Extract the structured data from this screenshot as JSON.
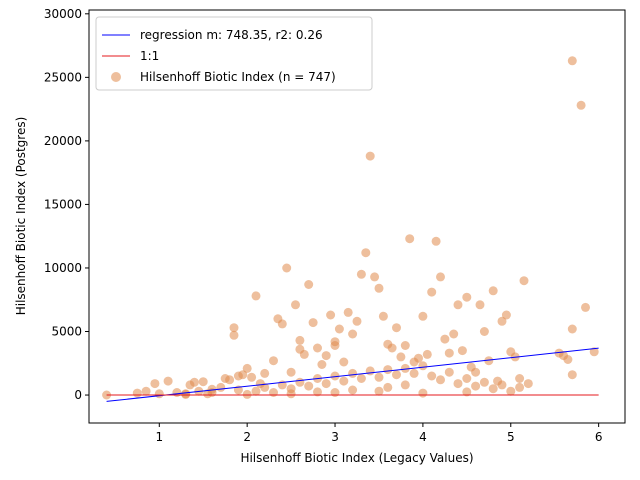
{
  "chart_data": {
    "type": "scatter",
    "xlabel": "Hilsenhoff Biotic Index (Legacy Values)",
    "ylabel": "Hilsenhoff Biotic Index (Postgres)",
    "xlim": [
      0.2,
      6.3
    ],
    "ylim": [
      -2200,
      30300
    ],
    "xticks": [
      1,
      2,
      3,
      4,
      5,
      6
    ],
    "yticks": [
      0,
      5000,
      10000,
      15000,
      20000,
      25000,
      30000
    ],
    "grid": false,
    "legend_position": "top-left",
    "colors": {
      "regression": "#0000ff",
      "identity": "#e41a1c",
      "points": "#e08a4c"
    },
    "regression": {
      "label": "regression m: 748.35, r2: 0.26",
      "slope": 748.35,
      "x_range": [
        0.4,
        6.0
      ],
      "y_range": [
        -500,
        3690
      ]
    },
    "identity": {
      "label": "1:1",
      "x_range": [
        0.4,
        6.0
      ]
    },
    "series": [
      {
        "name": "Hilsenhoff Biotic Index (n = 747)",
        "points": [
          [
            0.4,
            0
          ],
          [
            0.75,
            150
          ],
          [
            0.85,
            300
          ],
          [
            0.95,
            900
          ],
          [
            1.0,
            100
          ],
          [
            1.1,
            1100
          ],
          [
            1.2,
            200
          ],
          [
            1.3,
            50
          ],
          [
            1.35,
            800
          ],
          [
            1.4,
            1000
          ],
          [
            1.45,
            300
          ],
          [
            1.5,
            1050
          ],
          [
            1.55,
            100
          ],
          [
            1.6,
            450
          ],
          [
            1.7,
            600
          ],
          [
            1.75,
            1300
          ],
          [
            1.8,
            1200
          ],
          [
            1.85,
            5300
          ],
          [
            1.85,
            4700
          ],
          [
            1.9,
            1500
          ],
          [
            1.95,
            1600
          ],
          [
            2.0,
            2100
          ],
          [
            2.05,
            1400
          ],
          [
            2.1,
            7800
          ],
          [
            2.15,
            900
          ],
          [
            2.2,
            1700
          ],
          [
            2.3,
            2700
          ],
          [
            2.35,
            6000
          ],
          [
            2.4,
            5600
          ],
          [
            2.45,
            10000
          ],
          [
            2.5,
            1800
          ],
          [
            2.55,
            7100
          ],
          [
            2.6,
            4300
          ],
          [
            2.6,
            3600
          ],
          [
            2.65,
            3200
          ],
          [
            2.7,
            8700
          ],
          [
            2.75,
            5700
          ],
          [
            2.8,
            3700
          ],
          [
            2.85,
            2400
          ],
          [
            2.9,
            3100
          ],
          [
            2.95,
            6300
          ],
          [
            3.0,
            4200
          ],
          [
            3.0,
            3900
          ],
          [
            3.05,
            5200
          ],
          [
            3.1,
            2600
          ],
          [
            3.15,
            6500
          ],
          [
            3.2,
            4800
          ],
          [
            3.25,
            5800
          ],
          [
            3.3,
            9500
          ],
          [
            3.35,
            11200
          ],
          [
            3.4,
            18800
          ],
          [
            3.45,
            9300
          ],
          [
            3.5,
            8400
          ],
          [
            3.55,
            6200
          ],
          [
            3.6,
            4000
          ],
          [
            3.65,
            3700
          ],
          [
            3.7,
            5300
          ],
          [
            3.75,
            3000
          ],
          [
            3.8,
            3900
          ],
          [
            3.85,
            12300
          ],
          [
            3.9,
            2600
          ],
          [
            3.95,
            2900
          ],
          [
            4.0,
            6200
          ],
          [
            4.05,
            3200
          ],
          [
            4.1,
            8100
          ],
          [
            4.15,
            12100
          ],
          [
            4.2,
            9300
          ],
          [
            4.25,
            4400
          ],
          [
            4.3,
            3300
          ],
          [
            4.35,
            4800
          ],
          [
            4.4,
            7100
          ],
          [
            4.45,
            3500
          ],
          [
            4.5,
            7700
          ],
          [
            4.55,
            2200
          ],
          [
            4.6,
            1800
          ],
          [
            4.65,
            7100
          ],
          [
            4.7,
            5000
          ],
          [
            4.75,
            2700
          ],
          [
            4.8,
            8200
          ],
          [
            4.85,
            1100
          ],
          [
            4.9,
            5800
          ],
          [
            4.95,
            6300
          ],
          [
            5.0,
            3400
          ],
          [
            5.05,
            3000
          ],
          [
            5.1,
            1300
          ],
          [
            5.15,
            9000
          ],
          [
            5.2,
            900
          ],
          [
            5.55,
            3300
          ],
          [
            5.6,
            3100
          ],
          [
            5.65,
            2800
          ],
          [
            5.7,
            26300
          ],
          [
            5.7,
            5200
          ],
          [
            5.7,
            1600
          ],
          [
            5.8,
            22800
          ],
          [
            5.85,
            6900
          ],
          [
            5.95,
            3400
          ],
          [
            1.3,
            100
          ],
          [
            1.6,
            200
          ],
          [
            1.9,
            400
          ],
          [
            2.1,
            300
          ],
          [
            2.2,
            600
          ],
          [
            2.3,
            200
          ],
          [
            2.4,
            800
          ],
          [
            2.5,
            500
          ],
          [
            2.6,
            1000
          ],
          [
            2.7,
            700
          ],
          [
            2.8,
            1300
          ],
          [
            2.9,
            900
          ],
          [
            3.0,
            1500
          ],
          [
            3.1,
            1100
          ],
          [
            3.2,
            1700
          ],
          [
            3.3,
            1300
          ],
          [
            3.4,
            1900
          ],
          [
            3.5,
            1400
          ],
          [
            3.6,
            2000
          ],
          [
            3.7,
            1600
          ],
          [
            3.8,
            2100
          ],
          [
            3.9,
            1700
          ],
          [
            4.0,
            2300
          ],
          [
            4.1,
            1500
          ],
          [
            4.2,
            1200
          ],
          [
            4.3,
            1800
          ],
          [
            4.4,
            900
          ],
          [
            4.5,
            1300
          ],
          [
            4.6,
            700
          ],
          [
            4.7,
            1000
          ],
          [
            4.8,
            500
          ],
          [
            4.9,
            800
          ],
          [
            5.0,
            300
          ],
          [
            5.1,
            600
          ],
          [
            2.0,
            50
          ],
          [
            2.5,
            100
          ],
          [
            3.0,
            200
          ],
          [
            3.5,
            300
          ],
          [
            4.0,
            150
          ],
          [
            4.5,
            250
          ],
          [
            3.2,
            400
          ],
          [
            3.6,
            600
          ],
          [
            2.8,
            250
          ],
          [
            3.8,
            800
          ]
        ]
      }
    ]
  }
}
